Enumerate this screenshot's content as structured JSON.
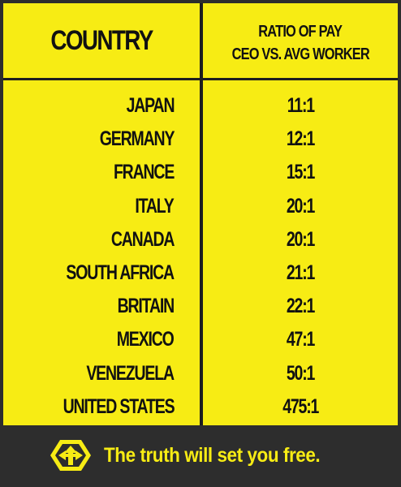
{
  "table": {
    "header": {
      "country": "COUNTRY",
      "ratio_line1": "RATIO OF PAY",
      "ratio_line2": "CEO VS. AVG WORKER"
    },
    "rows": [
      {
        "country": "JAPAN",
        "ratio": "11:1"
      },
      {
        "country": "GERMANY",
        "ratio": "12:1"
      },
      {
        "country": "FRANCE",
        "ratio": "15:1"
      },
      {
        "country": "ITALY",
        "ratio": "20:1"
      },
      {
        "country": "CANADA",
        "ratio": "20:1"
      },
      {
        "country": "SOUTH AFRICA",
        "ratio": "21:1"
      },
      {
        "country": "BRITAIN",
        "ratio": "22:1"
      },
      {
        "country": "MEXICO",
        "ratio": "47:1"
      },
      {
        "country": "VENEZUELA",
        "ratio": "50:1"
      },
      {
        "country": "UNITED STATES",
        "ratio": "475:1"
      }
    ]
  },
  "footer": {
    "tagline": "The truth will set you free.",
    "logo_icon": "arrows-hexagon-icon"
  },
  "colors": {
    "yellow": "#f7ec14",
    "dark": "#2d2d2d",
    "text": "#111111"
  }
}
